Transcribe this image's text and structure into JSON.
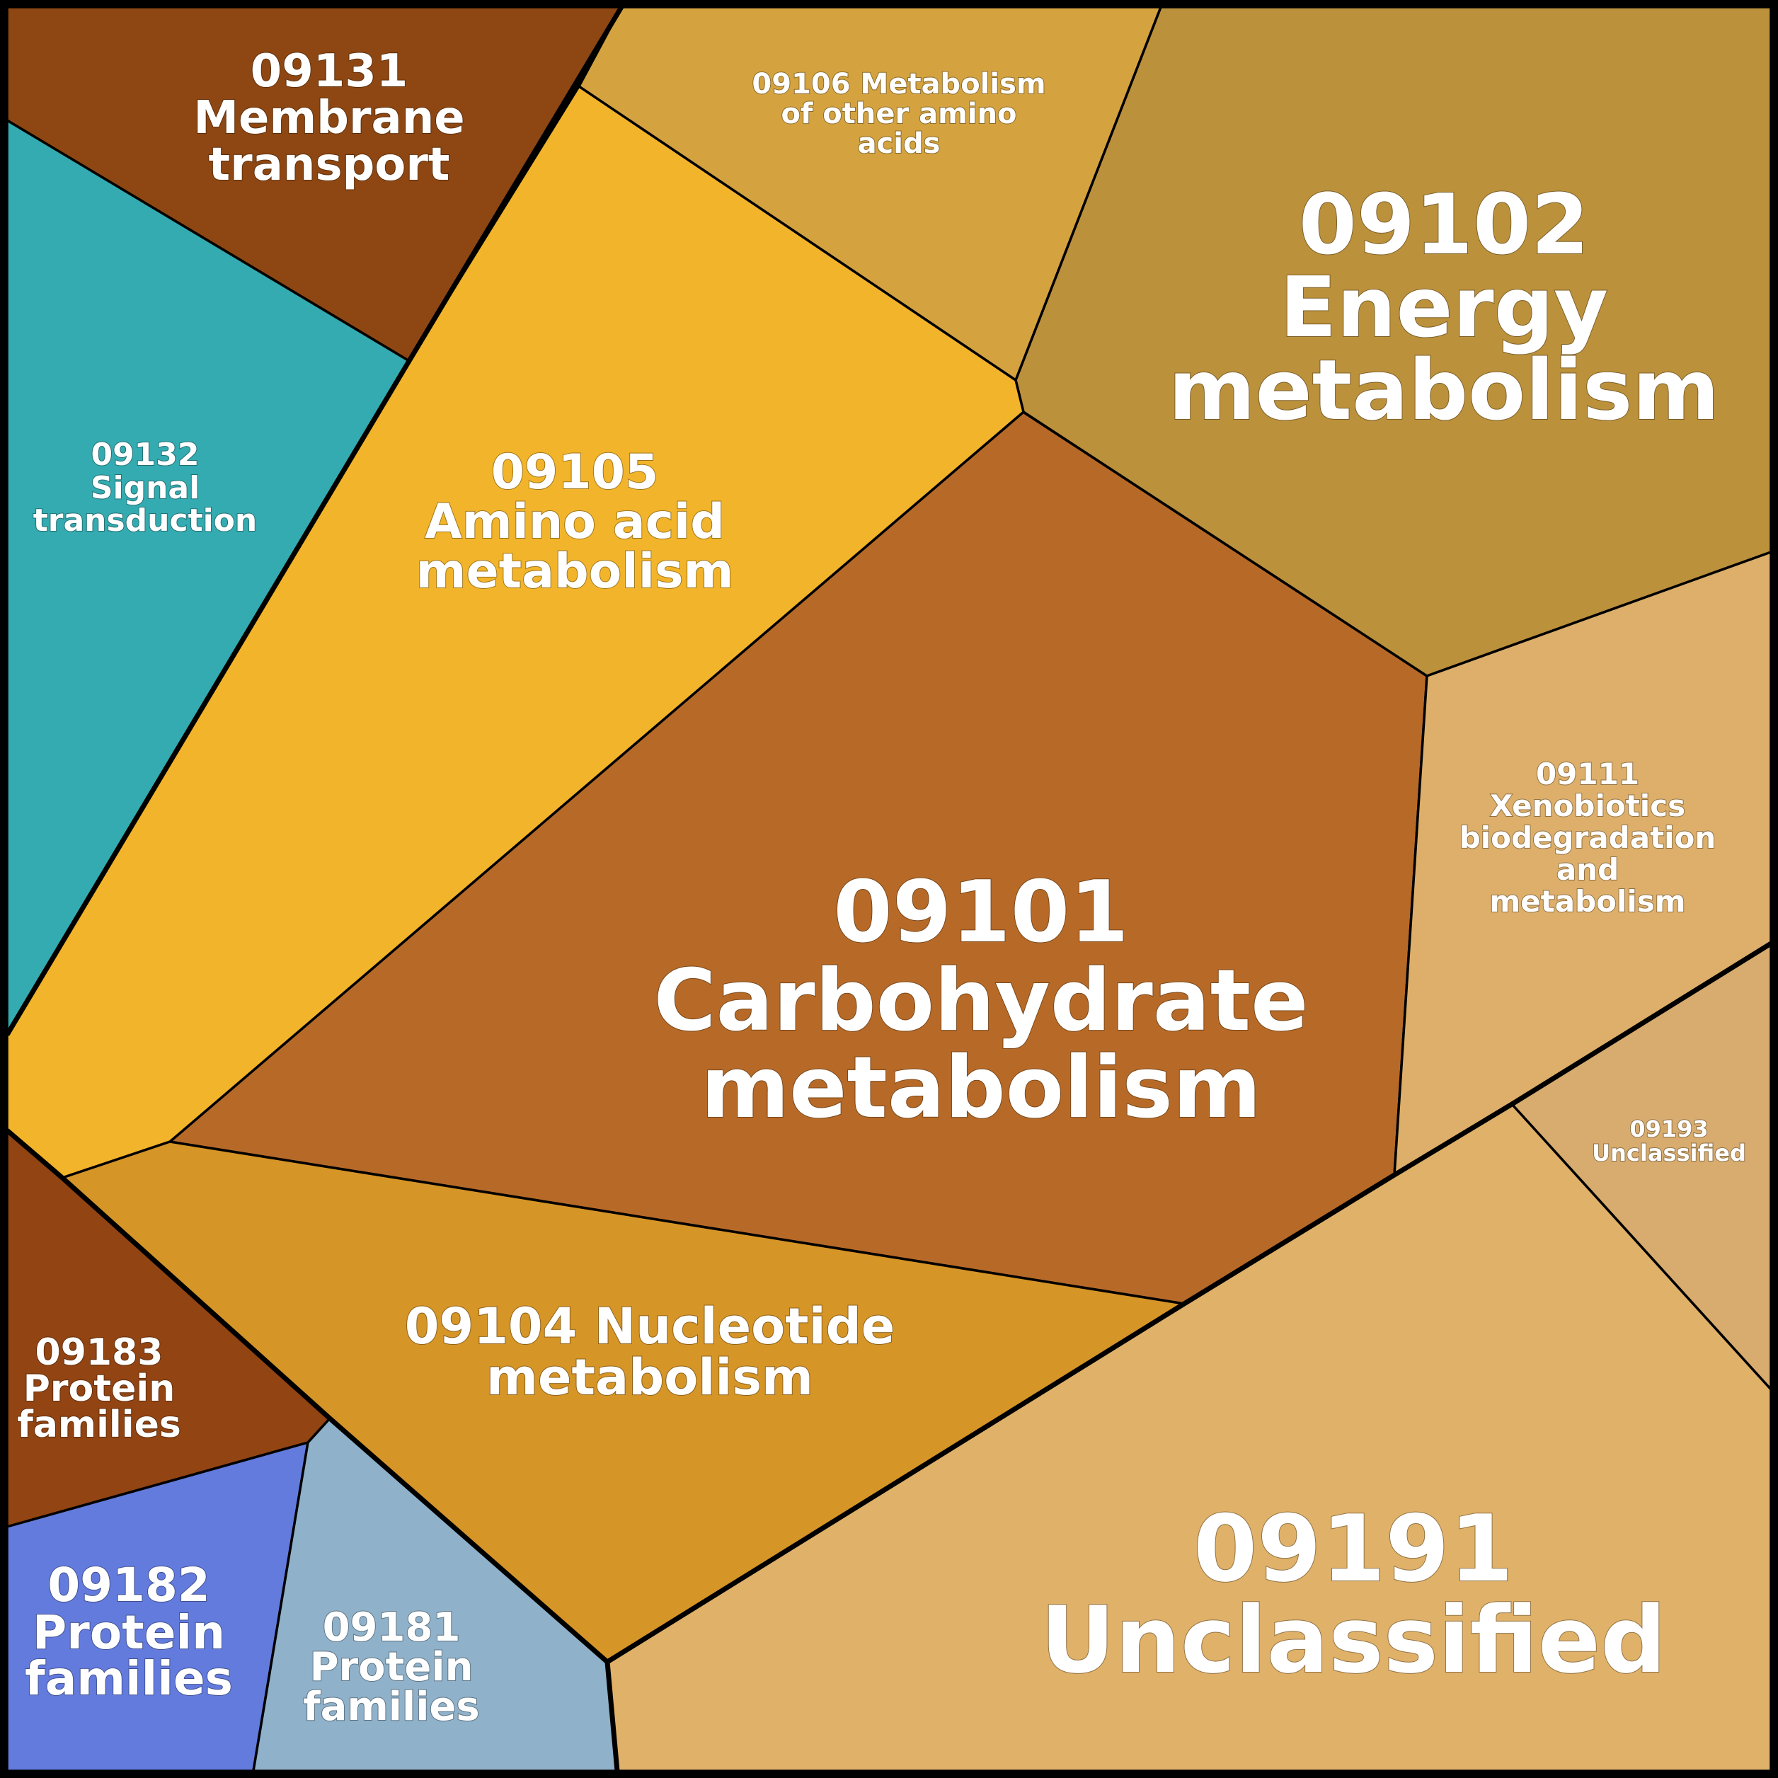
{
  "cells": [
    {
      "id": "09101",
      "lines": [
        "09101",
        "Carbohydrate",
        "metabolism"
      ],
      "color": "#B76A27"
    },
    {
      "id": "09102",
      "lines": [
        "09102",
        "Energy",
        "metabolism"
      ],
      "color": "#BC913C"
    },
    {
      "id": "09105",
      "lines": [
        "09105",
        "Amino acid",
        "metabolism"
      ],
      "color": "#F2B42A"
    },
    {
      "id": "09106",
      "lines": [
        "09106 Metabolism",
        "of other amino",
        "acids"
      ],
      "color": "#D4A33F"
    },
    {
      "id": "09131",
      "lines": [
        "09131",
        "Membrane",
        "transport"
      ],
      "color": "#8E4712"
    },
    {
      "id": "09132",
      "lines": [
        "09132",
        "Signal",
        "transduction"
      ],
      "color": "#33ABB1"
    },
    {
      "id": "09104",
      "lines": [
        "09104 Nucleotide",
        "metabolism"
      ],
      "color": "#D69527"
    },
    {
      "id": "09111",
      "lines": [
        "09111",
        "Xenobiotics",
        "biodegradation",
        "and",
        "metabolism"
      ],
      "color": "#DDAF6A"
    },
    {
      "id": "09193",
      "lines": [
        "09193",
        "Unclassified"
      ],
      "color": "#D8AC6E"
    },
    {
      "id": "09191",
      "lines": [
        "09191",
        "Unclassified"
      ],
      "color": "#E0B169"
    },
    {
      "id": "09183",
      "lines": [
        "09183",
        "Protein",
        "families"
      ],
      "color": "#924412"
    },
    {
      "id": "09182",
      "lines": [
        "09182",
        "Protein",
        "families"
      ],
      "color": "#637BDD"
    },
    {
      "id": "09181",
      "lines": [
        "09181",
        "Protein",
        "families"
      ],
      "color": "#8FB1CA"
    }
  ],
  "border_color": "#000000"
}
